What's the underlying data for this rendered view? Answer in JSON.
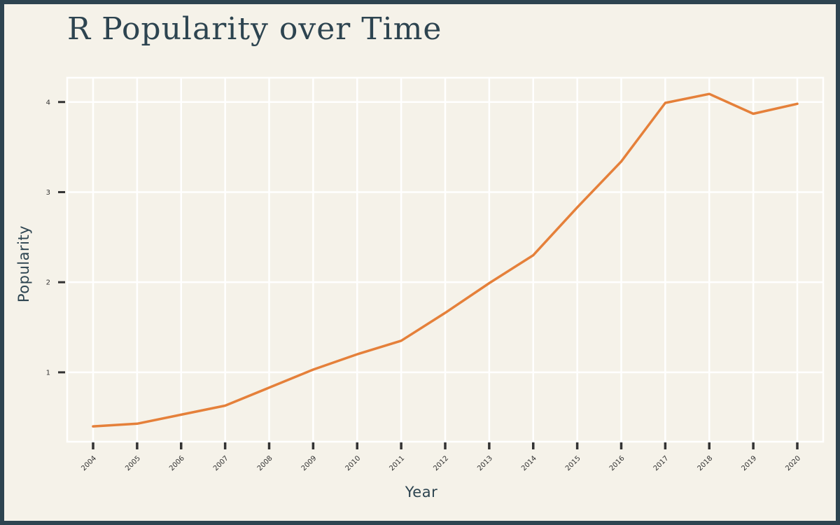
{
  "chart_data": {
    "type": "line",
    "title": "R Popularity over Time",
    "xlabel": "Year",
    "ylabel": "Popularity",
    "x": [
      "2004",
      "2005",
      "2006",
      "2007",
      "2008",
      "2009",
      "2010",
      "2011",
      "2012",
      "2013",
      "2014",
      "2015",
      "2016",
      "2017",
      "2018",
      "2019",
      "2020"
    ],
    "series": [
      {
        "values": [
          0.4,
          0.43,
          0.53,
          0.63,
          0.83,
          1.03,
          1.2,
          1.35,
          1.66,
          1.99,
          2.3,
          2.83,
          3.34,
          3.99,
          4.09,
          3.87,
          3.98
        ]
      }
    ],
    "ylim": [
      0.23,
      4.27
    ],
    "yticks": [
      1,
      2,
      3,
      4
    ],
    "grid": true,
    "legend": "none",
    "colors": {
      "line": "#e5803a",
      "panel": "#f5f2e9",
      "grid": "#ffffff",
      "border": "#2d4450",
      "ticks": "#333333"
    }
  }
}
